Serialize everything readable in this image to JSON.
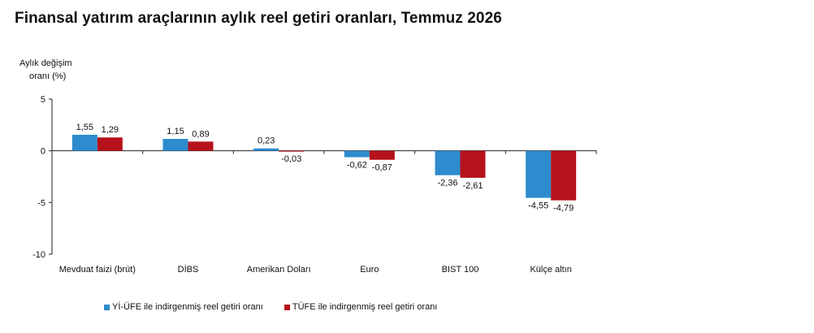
{
  "title": "Finansal yatırım araçlarının aylık reel getiri oranları, Temmuz 2026",
  "chart_data": {
    "type": "bar",
    "title": "Finansal yatırım araçlarının aylık reel getiri oranları, Temmuz 2026",
    "ylabel": "Aylık değişim oranı (%)",
    "ylabel_lines": [
      "Aylık değişim",
      "oranı (%)"
    ],
    "xlabel": "",
    "ylim": [
      -10,
      5
    ],
    "yticks": [
      5,
      0,
      -5,
      -10
    ],
    "ytick_labels": [
      "5",
      "0",
      "-5",
      "-10"
    ],
    "grid": false,
    "legend_position": "bottom-left",
    "categories": [
      "Mevduat faizi (brüt)",
      "DİBS",
      "Amerikan Doları",
      "Euro",
      "BIST 100",
      "Külçe altın"
    ],
    "series": [
      {
        "name": "Yİ-ÜFE ile indirgenmiş reel getiri oranı",
        "color": "#2e8bcd",
        "values": [
          1.55,
          1.15,
          0.23,
          -0.62,
          -2.36,
          -4.55
        ],
        "labels": [
          "1,55",
          "1,15",
          "0,23",
          "-0,62",
          "-2,36",
          "-4,55"
        ]
      },
      {
        "name": "TÜFE ile indirgenmiş reel getiri oranı",
        "color": "#b5121b",
        "values": [
          1.29,
          0.89,
          -0.03,
          -0.87,
          -2.61,
          -4.79
        ],
        "labels": [
          "1,29",
          "0,89",
          "-0,03",
          "-0,87",
          "-2,61",
          "-4,79"
        ]
      }
    ]
  }
}
